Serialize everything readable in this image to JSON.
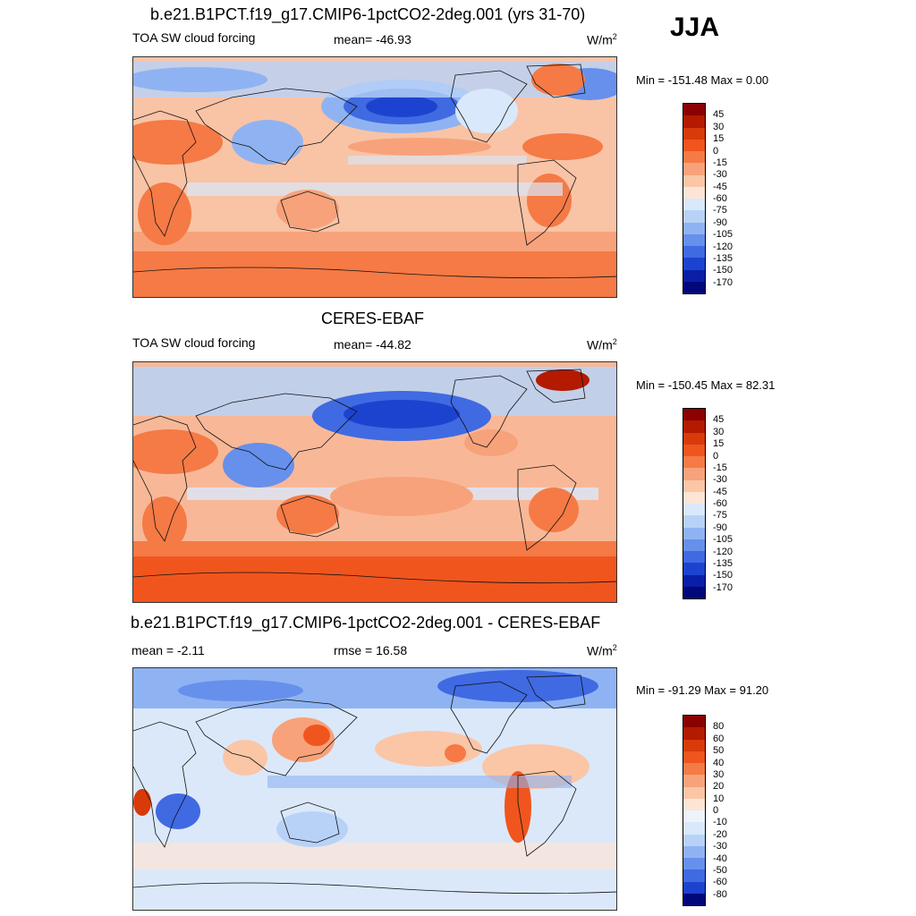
{
  "season": "JJA",
  "panels": [
    {
      "id": "model",
      "title": "b.e21.B1PCT.f19_g17.CMIP6-1pctCO2-2deg.001 (yrs 31-70)",
      "left_label": "TOA SW cloud forcing",
      "center_label": "mean= -46.93",
      "units": "W/m",
      "units_sup": "2",
      "minmax": "Min = -151.48 Max =   0.00",
      "colorbar_labels": [
        "45",
        "30",
        "15",
        "0",
        "-15",
        "-30",
        "-45",
        "-60",
        "-75",
        "-90",
        "-105",
        "-120",
        "-135",
        "-150",
        "-170"
      ],
      "colorbar_colors": [
        "#8b0000",
        "#b31a00",
        "#d93a0a",
        "#f0551e",
        "#f57a45",
        "#f7a27a",
        "#fac6a6",
        "#fde5d6",
        "#d9e8fb",
        "#b8d2f7",
        "#8fb3f2",
        "#6690ec",
        "#3f6ae2",
        "#1c43d0",
        "#0a1fa8",
        "#00087a"
      ]
    },
    {
      "id": "obs",
      "title": "CERES-EBAF",
      "left_label": "TOA SW cloud forcing",
      "center_label": "mean= -44.82",
      "units": "W/m",
      "units_sup": "2",
      "minmax": "Min = -150.45 Max =  82.31",
      "colorbar_labels": [
        "45",
        "30",
        "15",
        "0",
        "-15",
        "-30",
        "-45",
        "-60",
        "-75",
        "-90",
        "-105",
        "-120",
        "-135",
        "-150",
        "-170"
      ],
      "colorbar_colors": [
        "#8b0000",
        "#b31a00",
        "#d93a0a",
        "#f0551e",
        "#f57a45",
        "#f7a27a",
        "#fac6a6",
        "#fde5d6",
        "#d9e8fb",
        "#b8d2f7",
        "#8fb3f2",
        "#6690ec",
        "#3f6ae2",
        "#1c43d0",
        "#0a1fa8",
        "#00087a"
      ]
    },
    {
      "id": "diff",
      "title": "b.e21.B1PCT.f19_g17.CMIP6-1pctCO2-2deg.001 - CERES-EBAF",
      "left_label": "mean =  -2.11",
      "center_label": "rmse =  16.58",
      "units": "W/m",
      "units_sup": "2",
      "minmax": "Min = -91.29 Max =  91.20",
      "colorbar_labels": [
        "80",
        "60",
        "50",
        "40",
        "30",
        "20",
        "10",
        "0",
        "-10",
        "-20",
        "-30",
        "-40",
        "-50",
        "-60",
        "-80"
      ],
      "colorbar_colors": [
        "#8b0000",
        "#b31a00",
        "#d93a0a",
        "#f0551e",
        "#f57a45",
        "#f7a27a",
        "#fac6a6",
        "#fde5d6",
        "#eef3fb",
        "#d9e8fb",
        "#b8d2f7",
        "#8fb3f2",
        "#6690ec",
        "#3f6ae2",
        "#1c43d0",
        "#00087a"
      ]
    }
  ],
  "colors": {
    "land_outline": "#111111",
    "model_bg": "#f9c3a6",
    "obs_bg": "#f8b898",
    "diff_bg": "#dbe8fa"
  }
}
